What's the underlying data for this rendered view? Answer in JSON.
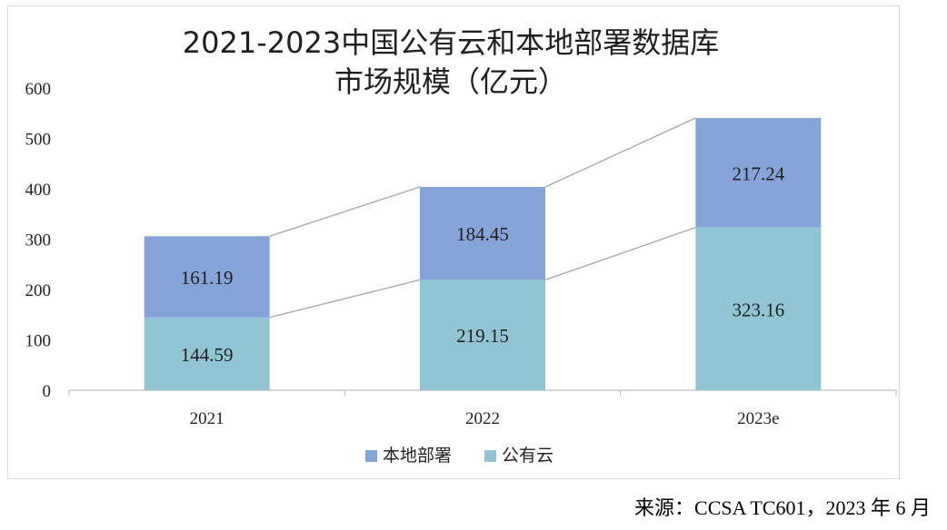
{
  "chart_data": {
    "type": "bar",
    "stacked": true,
    "title_lines": [
      "2021-2023中国公有云和本地部署数据库",
      "市场规模（亿元）"
    ],
    "categories": [
      "2021",
      "2022",
      "2023e"
    ],
    "series": [
      {
        "name": "公有云",
        "values": [
          144.59,
          219.15,
          323.16
        ],
        "color": "#92c5d3"
      },
      {
        "name": "本地部署",
        "values": [
          161.19,
          184.45,
          217.24
        ],
        "color": "#85a5d8"
      }
    ],
    "data_labels": [
      [
        "144.59",
        "219.15",
        "323.16"
      ],
      [
        "161.19",
        "184.45",
        "217.24"
      ]
    ],
    "legend_order": [
      1,
      0
    ],
    "ylim": [
      0,
      600
    ],
    "yticks": [
      "0",
      "100",
      "200",
      "300",
      "400",
      "500",
      "600"
    ],
    "ytick_values": [
      0,
      100,
      200,
      300,
      400,
      500,
      600
    ],
    "legend_position": "bottom",
    "grid": false,
    "connector_lines": true
  },
  "source": "来源：CCSA TC601，2023 年 6 月"
}
